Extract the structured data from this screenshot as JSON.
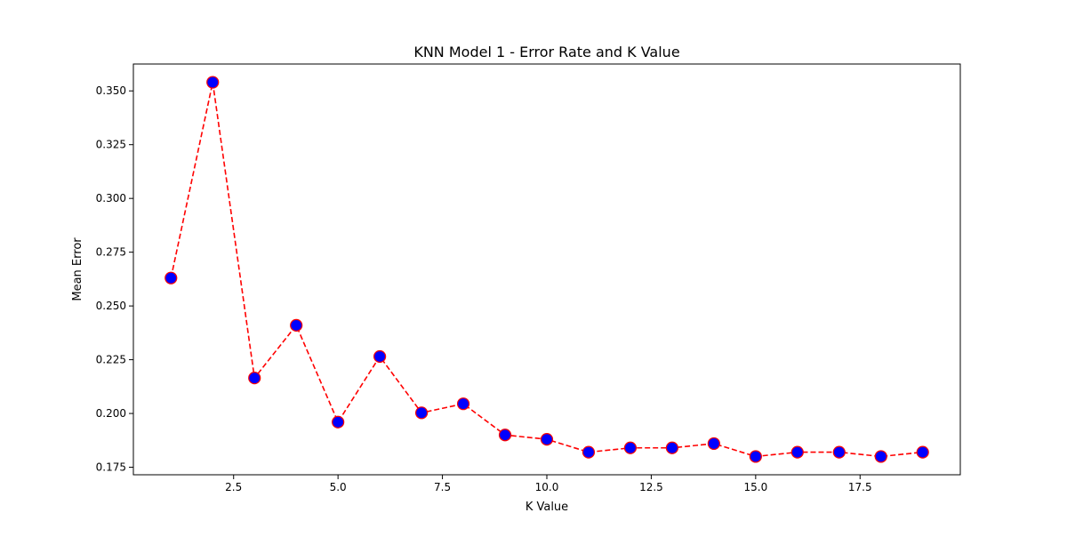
{
  "chart_data": {
    "type": "line",
    "title": "KNN Model 1 - Error Rate and K Value",
    "xlabel": "K Value",
    "ylabel": "Mean Error",
    "xlim": [
      0.1,
      19.9
    ],
    "ylim": [
      0.1715,
      0.3625
    ],
    "xticks": [
      2.5,
      5.0,
      7.5,
      10.0,
      12.5,
      15.0,
      17.5
    ],
    "xtick_labels": [
      "2.5",
      "5.0",
      "7.5",
      "10.0",
      "12.5",
      "15.0",
      "17.5"
    ],
    "yticks": [
      0.175,
      0.2,
      0.225,
      0.25,
      0.275,
      0.3,
      0.325,
      0.35
    ],
    "ytick_labels": [
      "0.175",
      "0.200",
      "0.225",
      "0.250",
      "0.275",
      "0.300",
      "0.325",
      "0.350"
    ],
    "grid": false,
    "line_color": "#ff0000",
    "line_style": "dashed",
    "marker_face_color": "#0000ff",
    "marker_edge_color": "#ff0000",
    "x": [
      1,
      2,
      3,
      4,
      5,
      6,
      7,
      8,
      9,
      10,
      11,
      12,
      13,
      14,
      15,
      16,
      17,
      18,
      19
    ],
    "series": [
      {
        "values": [
          0.263,
          0.354,
          0.2165,
          0.241,
          0.196,
          0.2265,
          0.2003,
          0.2045,
          0.19,
          0.188,
          0.182,
          0.184,
          0.184,
          0.186,
          0.18,
          0.182,
          0.182,
          0.18,
          0.182
        ]
      }
    ]
  }
}
